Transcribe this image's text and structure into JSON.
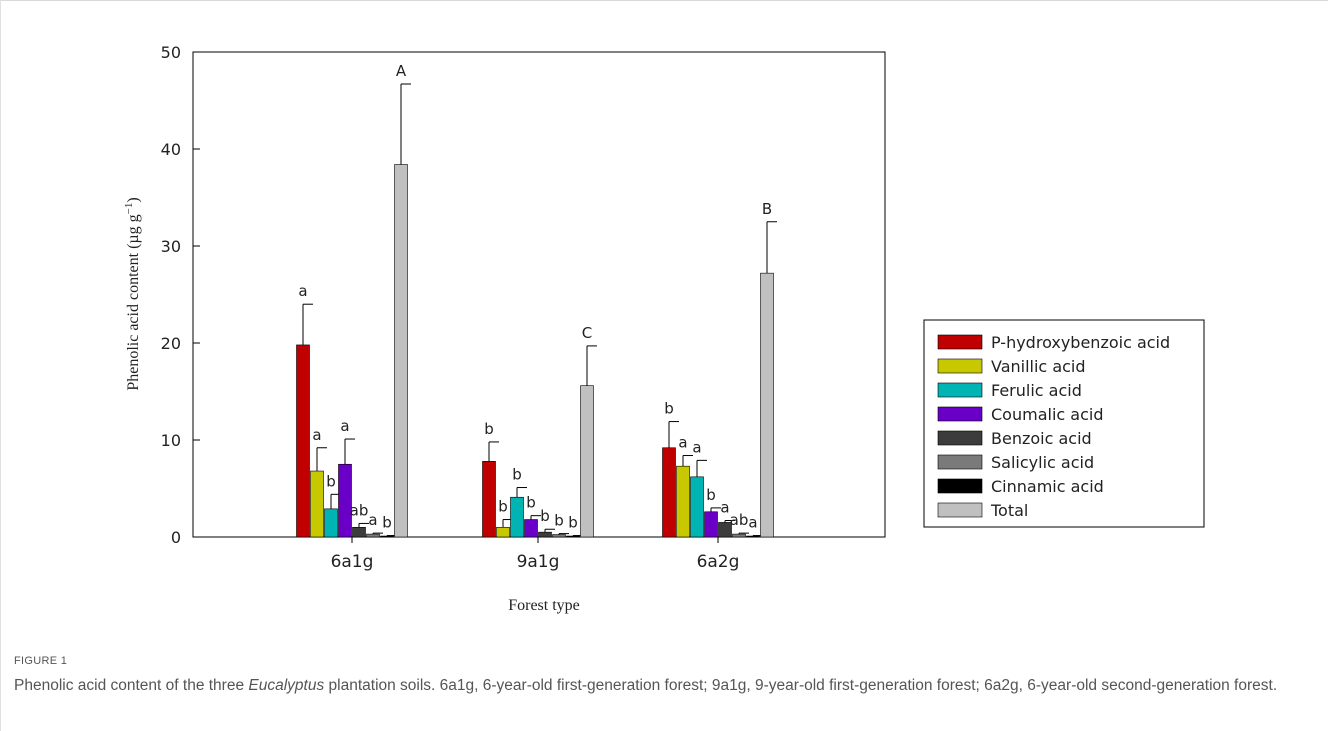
{
  "chart_data": {
    "type": "bar",
    "ylabel": "Phenolic acid content (µg g",
    "ylabel_sup": "−1",
    "ylabel_close": ")",
    "xlabel": "Forest type",
    "ylim": [
      0,
      50
    ],
    "yticks": [
      0,
      10,
      20,
      30,
      40,
      50
    ],
    "categories": [
      "6a1g",
      "9a1g",
      "6a2g"
    ],
    "legend_position": "right",
    "series": [
      {
        "name": "P-hydroxybenzoic acid",
        "color": "#c00000",
        "values": [
          19.8,
          7.8,
          9.2
        ],
        "errors": [
          4.2,
          2.0,
          2.7
        ],
        "letters": [
          "a",
          "b",
          "b"
        ]
      },
      {
        "name": "Vanillic acid",
        "color": "#c8c800",
        "values": [
          6.8,
          1.0,
          7.3
        ],
        "errors": [
          2.4,
          0.8,
          1.1
        ],
        "letters": [
          "a",
          "b",
          "a"
        ]
      },
      {
        "name": "Ferulic acid",
        "color": "#00b4b4",
        "values": [
          2.9,
          4.1,
          6.2
        ],
        "errors": [
          1.5,
          1.0,
          1.7
        ],
        "letters": [
          "b",
          "b",
          "a"
        ]
      },
      {
        "name": "Coumalic acid",
        "color": "#6a00c8",
        "values": [
          7.5,
          1.8,
          2.6
        ],
        "errors": [
          2.6,
          0.4,
          0.4
        ],
        "letters": [
          "a",
          "b",
          "b"
        ]
      },
      {
        "name": "Benzoic acid",
        "color": "#3c3c3c",
        "values": [
          1.0,
          0.5,
          1.5
        ],
        "errors": [
          0.4,
          0.3,
          0.2
        ],
        "letters": [
          "ab",
          "b",
          "a"
        ]
      },
      {
        "name": "Salicylic acid",
        "color": "#7a7a7a",
        "values": [
          0.3,
          0.25,
          0.3
        ],
        "errors": [
          0.1,
          0.1,
          0.1
        ],
        "letters": [
          "a",
          "b",
          "ab"
        ]
      },
      {
        "name": "Cinnamic acid",
        "color": "#000000",
        "values": [
          0.1,
          0.1,
          0.1
        ],
        "errors": [
          0.05,
          0.05,
          0.05
        ],
        "letters": [
          "b",
          "b",
          "a"
        ]
      },
      {
        "name": "Total",
        "color": "#c0c0c0",
        "values": [
          38.4,
          15.6,
          27.2
        ],
        "errors": [
          8.3,
          4.1,
          5.3
        ],
        "letters": [
          "A",
          "C",
          "B"
        ]
      }
    ]
  },
  "caption": {
    "label": "FIGURE 1",
    "text_before": "Phenolic acid content of the three ",
    "text_italic": "Eucalyptus",
    "text_after": " plantation soils. 6a1g, 6-year-old first-generation forest; 9a1g, 9-year-old first-generation forest; 6a2g, 6-year-old second-generation forest."
  }
}
